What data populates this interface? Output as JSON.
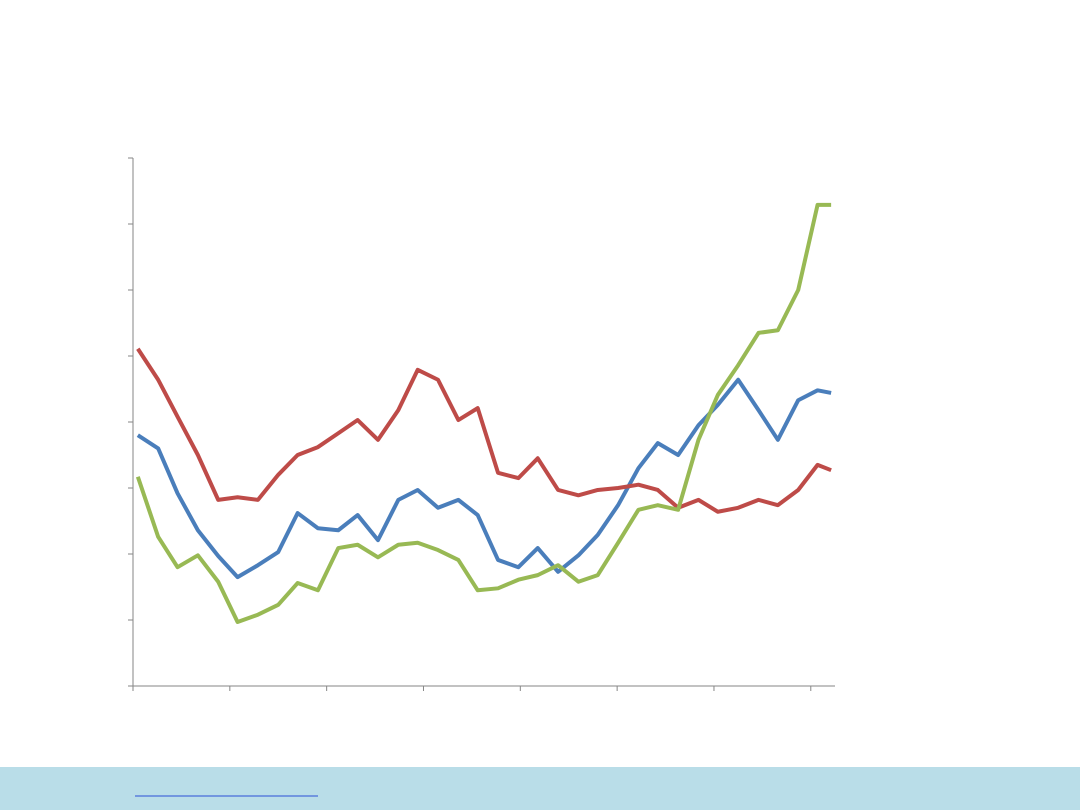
{
  "chart_data": {
    "type": "line",
    "x": [
      0.05,
      0.26,
      0.46,
      0.67,
      0.88,
      1.08,
      1.29,
      1.5,
      1.7,
      1.91,
      2.12,
      2.32,
      2.53,
      2.74,
      2.94,
      3.15,
      3.36,
      3.56,
      3.77,
      3.98,
      4.18,
      4.39,
      4.6,
      4.8,
      5.01,
      5.22,
      5.42,
      5.63,
      5.84,
      6.04,
      6.25,
      6.46,
      6.66,
      6.87,
      7.07,
      7.21
    ],
    "series": [
      {
        "color": "#4a7ebb",
        "values": [
          3.8,
          3.6,
          2.92,
          2.36,
          1.97,
          1.65,
          1.83,
          2.03,
          2.62,
          2.39,
          2.36,
          2.59,
          2.21,
          2.82,
          2.97,
          2.7,
          2.82,
          2.59,
          1.91,
          1.8,
          2.09,
          1.73,
          1.98,
          2.29,
          2.74,
          3.3,
          3.68,
          3.5,
          3.95,
          4.26,
          4.64,
          4.18,
          3.73,
          4.33,
          4.48,
          4.44
        ]
      },
      {
        "color": "#be4b48",
        "values": [
          5.11,
          4.64,
          4.08,
          3.5,
          2.82,
          2.86,
          2.82,
          3.2,
          3.5,
          3.62,
          3.83,
          4.03,
          3.73,
          4.18,
          4.79,
          4.64,
          4.03,
          4.21,
          3.23,
          3.15,
          3.45,
          2.97,
          2.89,
          2.97,
          3.0,
          3.05,
          2.97,
          2.7,
          2.82,
          2.64,
          2.7,
          2.82,
          2.74,
          2.97,
          3.35,
          3.27
        ]
      },
      {
        "color": "#98b954",
        "values": [
          3.17,
          2.26,
          1.8,
          1.98,
          1.58,
          0.97,
          1.08,
          1.23,
          1.56,
          1.45,
          2.09,
          2.14,
          1.95,
          2.14,
          2.17,
          2.06,
          1.91,
          1.45,
          1.48,
          1.61,
          1.68,
          1.83,
          1.58,
          1.68,
          2.17,
          2.67,
          2.74,
          2.67,
          3.73,
          4.41,
          4.86,
          5.35,
          5.39,
          6.0,
          7.29,
          7.29
        ]
      }
    ],
    "xlim": [
      0,
      7.25
    ],
    "xticks": [
      0,
      1,
      2,
      3,
      4,
      5,
      6,
      7
    ],
    "ylim": [
      0,
      8
    ],
    "yticks": [
      0,
      1,
      2,
      3,
      4,
      5,
      6,
      7,
      8
    ]
  }
}
